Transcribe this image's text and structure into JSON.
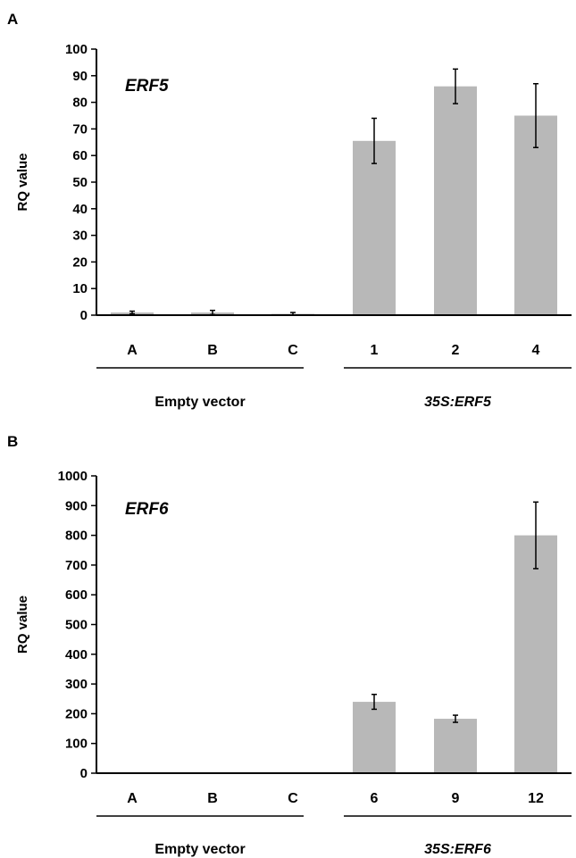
{
  "colors": {
    "bar": "#b8b8b8",
    "axis": "#000000",
    "error_bar": "#000000"
  },
  "chart_data": [
    {
      "panel": "A",
      "type": "bar",
      "annotation": "ERF5",
      "ylabel": "RQ value",
      "xlabel": "",
      "ylim": [
        0,
        100
      ],
      "ytick_step": 10,
      "grid": false,
      "categories": [
        "A",
        "B",
        "C",
        "1",
        "2",
        "4"
      ],
      "values": [
        1,
        1,
        0.5,
        65.5,
        86,
        75
      ],
      "errors": [
        0.5,
        0.8,
        0.5,
        8.5,
        6.5,
        12
      ],
      "groups": [
        {
          "label": "Empty vector",
          "italic": false,
          "categories": [
            "A",
            "B",
            "C"
          ]
        },
        {
          "label": "35S:ERF5",
          "italic": true,
          "categories": [
            "1",
            "2",
            "4"
          ]
        }
      ]
    },
    {
      "panel": "B",
      "type": "bar",
      "annotation": "ERF6",
      "ylabel": "RQ value",
      "xlabel": "",
      "ylim": [
        0,
        1000
      ],
      "ytick_step": 100,
      "grid": false,
      "categories": [
        "A",
        "B",
        "C",
        "6",
        "9",
        "12"
      ],
      "values": [
        1,
        1,
        1,
        240,
        183,
        800
      ],
      "errors": [
        0,
        0,
        0,
        25,
        12,
        112
      ],
      "groups": [
        {
          "label": "Empty vector",
          "italic": false,
          "categories": [
            "A",
            "B",
            "C"
          ]
        },
        {
          "label": "35S:ERF6",
          "italic": true,
          "categories": [
            "6",
            "9",
            "12"
          ]
        }
      ]
    }
  ]
}
